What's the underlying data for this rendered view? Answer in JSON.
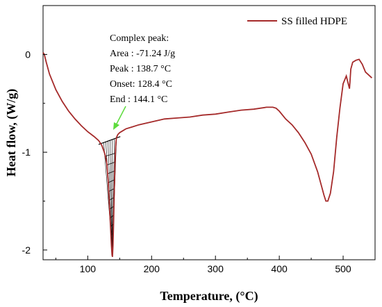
{
  "chart_data": {
    "type": "line",
    "xlabel": "Temperature, (°C)",
    "ylabel": "Heat flow, (W/g)",
    "xlim": [
      30,
      550
    ],
    "ylim": [
      -2.1,
      0.5
    ],
    "x_ticks": [
      100,
      200,
      300,
      400,
      500
    ],
    "y_ticks": [
      0,
      -1,
      -2
    ],
    "x_tick_labels": [
      "100",
      "200",
      "300",
      "400",
      "500"
    ],
    "y_tick_labels": [
      "0",
      "-1",
      "-2"
    ],
    "grid": false,
    "legend_position": "top-right",
    "series": [
      {
        "name": "SS filled HDPE",
        "color": "#a52a2a",
        "x": [
          30,
          32,
          35,
          40,
          50,
          60,
          70,
          80,
          90,
          100,
          110,
          117,
          122,
          126,
          128,
          130,
          132,
          134,
          136,
          137,
          138,
          138.7,
          139.5,
          140.5,
          141.5,
          142.5,
          143.5,
          144.1,
          145,
          147,
          150,
          155,
          160,
          170,
          180,
          200,
          220,
          240,
          260,
          280,
          300,
          320,
          340,
          360,
          380,
          390,
          395,
          400,
          410,
          420,
          430,
          440,
          450,
          460,
          465,
          470,
          473,
          476,
          480,
          485,
          490,
          495,
          500,
          505,
          508,
          510,
          512,
          515,
          520,
          525,
          530,
          535,
          540,
          545
        ],
        "y": [
          0.02,
          0.0,
          -0.08,
          -0.2,
          -0.36,
          -0.48,
          -0.58,
          -0.66,
          -0.73,
          -0.79,
          -0.84,
          -0.88,
          -0.93,
          -1.0,
          -1.05,
          -1.12,
          -1.3,
          -1.55,
          -1.8,
          -1.95,
          -2.05,
          -2.07,
          -1.95,
          -1.7,
          -1.4,
          -1.15,
          -0.98,
          -0.9,
          -0.85,
          -0.82,
          -0.8,
          -0.78,
          -0.76,
          -0.74,
          -0.72,
          -0.69,
          -0.66,
          -0.65,
          -0.64,
          -0.62,
          -0.61,
          -0.59,
          -0.57,
          -0.56,
          -0.54,
          -0.54,
          -0.55,
          -0.58,
          -0.66,
          -0.72,
          -0.8,
          -0.9,
          -1.02,
          -1.2,
          -1.32,
          -1.44,
          -1.5,
          -1.5,
          -1.42,
          -1.2,
          -0.85,
          -0.55,
          -0.3,
          -0.22,
          -0.3,
          -0.35,
          -0.15,
          -0.08,
          -0.06,
          -0.05,
          -0.1,
          -0.18,
          -0.21,
          -0.24
        ]
      }
    ],
    "baseline": {
      "x1": 117,
      "y1": -0.92,
      "x2": 151,
      "y2": -0.84
    },
    "annotation": {
      "title": "Complex peak:",
      "lines": [
        "Area : -71.24 J/g",
        "Peak : 138.7 °C",
        "Onset: 128.4 °C",
        "End   : 144.1 °C"
      ],
      "arrow_color": "#5cdb3c"
    }
  }
}
